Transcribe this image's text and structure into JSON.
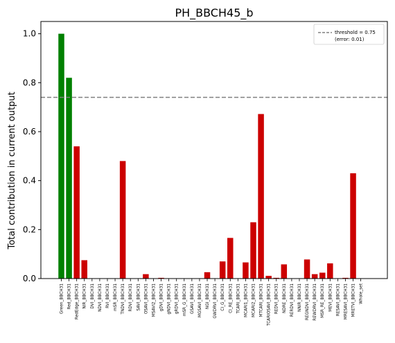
{
  "chart_data": {
    "type": "bar",
    "title": "PH_BBCH45_b",
    "xlabel": "",
    "ylabel": "Total contribution in current output",
    "ylim": [
      0,
      1.05
    ],
    "yticks": [
      0.0,
      0.2,
      0.4,
      0.6,
      0.8,
      1.0
    ],
    "ytick_labels": [
      "0.0",
      "0.2",
      "0.4",
      "0.6",
      "0.8",
      "1.0"
    ],
    "grid": false,
    "legend_position": "top-right",
    "colors": {
      "above": "#008000",
      "below": "#cc0000",
      "threshold": "#808080"
    },
    "threshold": {
      "value": 0.74,
      "label": "threshold = 0.75",
      "error_label": "(error: 0.01)"
    },
    "categories": [
      "Green_BBCH31",
      "Red_BBCH31",
      "RedEdge_BBCH31",
      "NIR_BBCH31",
      "DVI_BBCH31",
      "NDVI_BBCH31",
      "RVI_BBCH31",
      "mSR_BBCH31",
      "TNDVI_BBCH31",
      "RDVI_BBCH31",
      "SAVI_BBCH31",
      "OSAVI_BBCH31",
      "MSAVI2_BBCH31",
      "gDVI_BBCH31",
      "gNDVI_BBCH31",
      "gRDVI_BBCH31",
      "mSR_G_BBCH31",
      "GSAVI_BBCH31",
      "MGSAVI_BBCH31",
      "NGI_BBCH31",
      "GWDRVI_BBCH31",
      "CI_G_BBCH31",
      "CI_RE_BBCH31",
      "TCARI_BBCH31",
      "MCARI1_BBCH31",
      "MCARI2_BBCH31",
      "MTCARI_BBCH31",
      "TCARIOSAVI_BBCH31",
      "REDVI_BBCH31",
      "NDRE_BBCH31",
      "RERDVI_BBCH31",
      "NNIR_BBCH31",
      "REGNDVI_BBCH31",
      "REWDRVI_BBCH31",
      "MSR_RE_BBCH31",
      "MEVI_BBCH31",
      "RESAVI_BBCH31",
      "MRESAVI_BBCH31",
      "MRETVI_BBCH31",
      "Whole_set"
    ],
    "values": [
      1.0,
      0.82,
      0.54,
      0.075,
      0,
      0,
      0,
      0,
      0.48,
      0,
      0,
      0.018,
      0,
      0.003,
      0,
      0,
      0,
      0,
      0,
      0.026,
      0,
      0.07,
      0.166,
      0,
      0.066,
      0.23,
      0.672,
      0.011,
      0.003,
      0.058,
      0,
      0,
      0.078,
      0.018,
      0.024,
      0.062,
      0,
      0.003,
      0.43,
      0
    ]
  }
}
